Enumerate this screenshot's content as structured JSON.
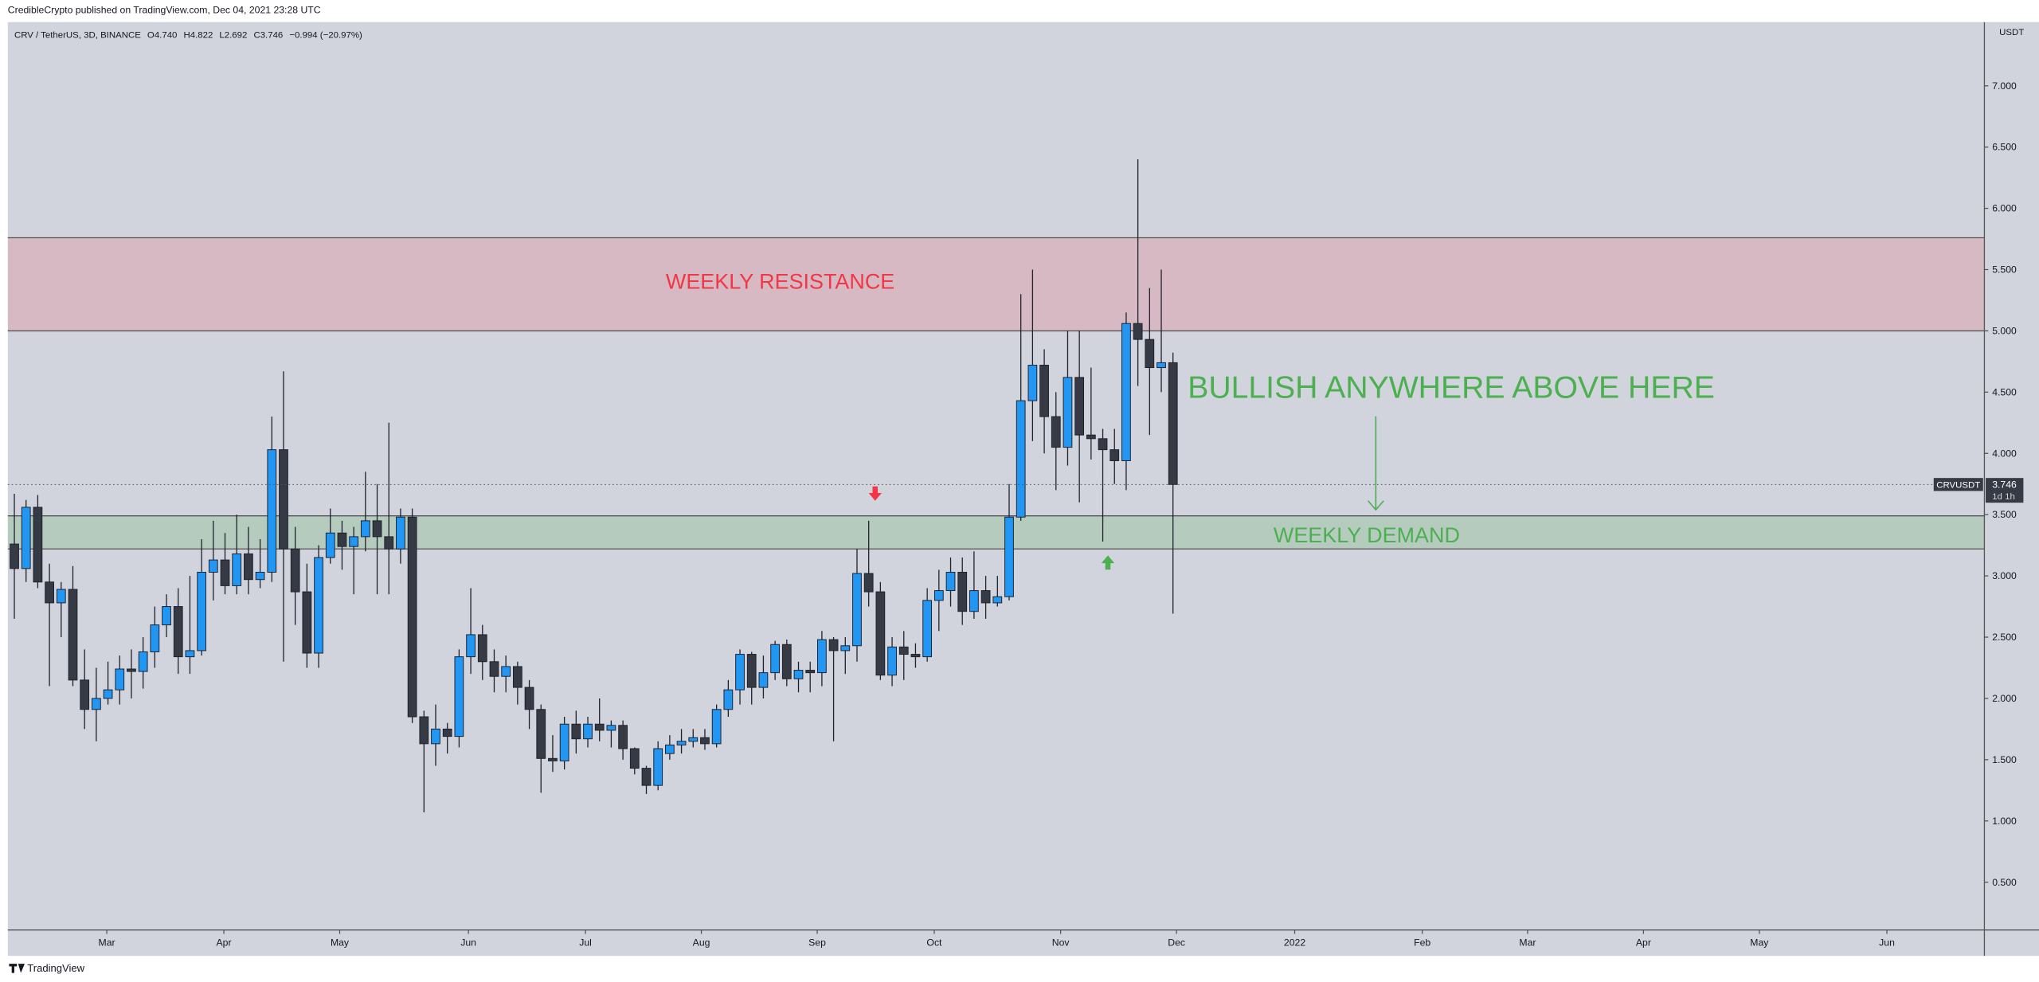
{
  "header": {
    "publisher": "CredibleCrypto published on TradingView.com, Dec 04, 2021 23:28 UTC",
    "footer": "TradingView"
  },
  "legend": {
    "symbol": "CRV / TetherUS, 3D, BINANCE",
    "items": [
      {
        "key": "O",
        "value": "4.740"
      },
      {
        "key": "H",
        "value": "4.822"
      },
      {
        "key": "L",
        "value": "2.692"
      },
      {
        "key": "C",
        "value": "3.746"
      }
    ],
    "change": "−0.994 (−20.97%)"
  },
  "chart_data": {
    "type": "candlestick",
    "y_unit": "USDT",
    "open": [
      3.26,
      3.06,
      3.56,
      2.95,
      2.78,
      2.89,
      2.15,
      1.91,
      2.0,
      2.07,
      2.24,
      2.22,
      2.38,
      2.6,
      2.75,
      2.34,
      2.39,
      3.03,
      3.13,
      2.92,
      3.18,
      2.97,
      3.03,
      4.03,
      3.22,
      2.87,
      2.37,
      3.15,
      3.35,
      3.24,
      3.32,
      3.45,
      3.32,
      3.22,
      3.48,
      1.85,
      1.63,
      1.75,
      1.69,
      2.34,
      2.52,
      2.3,
      2.18,
      2.26,
      2.09,
      1.91,
      1.51,
      1.49,
      1.79,
      1.67,
      1.79,
      1.74,
      1.78,
      1.59,
      1.43,
      1.29,
      1.55,
      1.62,
      1.65,
      1.68,
      1.63,
      1.91,
      2.07,
      2.36,
      2.09,
      2.21,
      2.44,
      2.16,
      2.23,
      2.21,
      2.48,
      2.39,
      2.43,
      3.02,
      2.87,
      2.19,
      2.42,
      2.36,
      2.34,
      2.8,
      2.88,
      3.03,
      2.71,
      2.88,
      2.78,
      2.83,
      3.48,
      4.43,
      4.72,
      4.3,
      4.05,
      4.62,
      4.15,
      4.12,
      4.03,
      3.94,
      5.06,
      4.93,
      4.7,
      4.74
    ],
    "high": [
      3.67,
      3.62,
      3.66,
      3.1,
      2.95,
      3.08,
      2.4,
      2.25,
      2.3,
      2.35,
      2.4,
      2.5,
      2.75,
      2.85,
      2.9,
      3.0,
      3.3,
      3.45,
      3.35,
      3.5,
      3.4,
      3.3,
      4.3,
      4.67,
      3.4,
      3.1,
      3.25,
      3.55,
      3.45,
      3.4,
      3.85,
      3.75,
      4.25,
      3.55,
      3.55,
      1.9,
      1.95,
      1.8,
      2.4,
      2.9,
      2.6,
      2.4,
      2.35,
      2.3,
      2.15,
      1.95,
      1.7,
      1.85,
      1.9,
      1.85,
      2.0,
      1.82,
      1.82,
      1.6,
      1.45,
      1.65,
      1.7,
      1.75,
      1.75,
      1.75,
      1.95,
      2.15,
      2.4,
      2.38,
      2.35,
      2.47,
      2.48,
      2.3,
      2.3,
      2.55,
      2.5,
      2.5,
      3.22,
      3.45,
      2.95,
      2.5,
      2.55,
      2.45,
      2.9,
      3.05,
      3.15,
      3.15,
      3.2,
      3.0,
      3.0,
      3.75,
      5.3,
      5.5,
      4.85,
      4.5,
      5.0,
      5.0,
      4.7,
      4.2,
      4.2,
      5.15,
      6.4,
      5.35,
      5.5,
      4.822
    ],
    "low": [
      2.65,
      2.95,
      2.9,
      2.1,
      2.5,
      2.1,
      1.75,
      1.65,
      1.95,
      1.95,
      2.0,
      2.08,
      2.25,
      2.5,
      2.2,
      2.2,
      2.35,
      2.8,
      2.85,
      2.85,
      2.85,
      2.9,
      2.95,
      2.3,
      2.6,
      2.25,
      2.25,
      3.1,
      3.05,
      2.85,
      3.2,
      2.85,
      2.85,
      3.1,
      1.8,
      1.07,
      1.45,
      1.55,
      1.6,
      2.2,
      2.15,
      2.05,
      2.05,
      1.95,
      1.75,
      1.23,
      1.4,
      1.42,
      1.55,
      1.6,
      1.65,
      1.6,
      1.5,
      1.38,
      1.22,
      1.25,
      1.5,
      1.55,
      1.6,
      1.58,
      1.6,
      1.85,
      1.95,
      1.95,
      2.0,
      2.15,
      2.1,
      2.05,
      2.05,
      2.1,
      1.65,
      2.2,
      2.3,
      2.75,
      2.15,
      2.1,
      2.15,
      2.25,
      2.3,
      2.55,
      2.75,
      2.6,
      2.65,
      2.65,
      2.75,
      2.8,
      3.45,
      4.1,
      4.0,
      3.7,
      3.9,
      3.6,
      3.95,
      3.28,
      3.75,
      3.7,
      4.55,
      4.15,
      4.5,
      2.692
    ],
    "close": [
      3.06,
      3.56,
      2.95,
      2.78,
      2.89,
      2.15,
      1.91,
      2.0,
      2.07,
      2.24,
      2.22,
      2.38,
      2.6,
      2.75,
      2.34,
      2.39,
      3.03,
      3.13,
      2.92,
      3.18,
      2.97,
      3.03,
      4.03,
      3.22,
      2.87,
      2.37,
      3.15,
      3.35,
      3.24,
      3.32,
      3.45,
      3.32,
      3.22,
      3.48,
      1.85,
      1.63,
      1.75,
      1.69,
      2.34,
      2.52,
      2.3,
      2.18,
      2.26,
      2.09,
      1.91,
      1.51,
      1.49,
      1.79,
      1.67,
      1.79,
      1.74,
      1.78,
      1.59,
      1.43,
      1.29,
      1.59,
      1.62,
      1.65,
      1.68,
      1.63,
      1.91,
      2.07,
      2.36,
      2.09,
      2.21,
      2.44,
      2.16,
      2.23,
      2.21,
      2.48,
      2.39,
      2.43,
      3.02,
      2.87,
      2.19,
      2.42,
      2.36,
      2.34,
      2.8,
      2.88,
      3.03,
      2.71,
      2.88,
      2.78,
      2.83,
      3.48,
      4.43,
      4.72,
      4.3,
      4.05,
      4.62,
      4.15,
      4.12,
      4.03,
      3.94,
      5.06,
      4.93,
      4.7,
      4.74,
      3.746
    ],
    "colors": {
      "up": "#2196f3",
      "down": "#363a45"
    },
    "xlim": [
      -0.56,
      168.33
    ],
    "xticks": [
      {
        "value": 7.9,
        "label": "Mar"
      },
      {
        "value": 17.9,
        "label": "Apr"
      },
      {
        "value": 27.8,
        "label": "May"
      },
      {
        "value": 38.8,
        "label": "Jun"
      },
      {
        "value": 48.8,
        "label": "Jul"
      },
      {
        "value": 58.7,
        "label": "Aug"
      },
      {
        "value": 68.6,
        "label": "Sep"
      },
      {
        "value": 78.6,
        "label": "Oct"
      },
      {
        "value": 89.4,
        "label": "Nov"
      },
      {
        "value": 99.3,
        "label": "Dec"
      },
      {
        "value": 109.4,
        "label": "2022"
      },
      {
        "value": 120.3,
        "label": "Feb"
      },
      {
        "value": 129.3,
        "label": "Mar"
      },
      {
        "value": 139.2,
        "label": "Apr"
      },
      {
        "value": 149.1,
        "label": "May"
      },
      {
        "value": 160,
        "label": "Jun"
      }
    ],
    "ylim": [
      0.11,
      7.52
    ],
    "yticks": [
      {
        "value": 0.5,
        "label": "0.500"
      },
      {
        "value": 1,
        "label": "1.000"
      },
      {
        "value": 1.5,
        "label": "1.500"
      },
      {
        "value": 2,
        "label": "2.000"
      },
      {
        "value": 2.5,
        "label": "2.500"
      },
      {
        "value": 3,
        "label": "3.000"
      },
      {
        "value": 3.5,
        "label": "3.500"
      },
      {
        "value": 4,
        "label": "4.000"
      },
      {
        "value": 4.5,
        "label": "4.500"
      },
      {
        "value": 5,
        "label": "5.000"
      },
      {
        "value": 5.5,
        "label": "5.500"
      },
      {
        "value": 6,
        "label": "6.000"
      },
      {
        "value": 6.5,
        "label": "6.500"
      },
      {
        "value": 7,
        "label": "7.000"
      }
    ],
    "grid": false,
    "zones": [
      {
        "name": "WEEKLY RESISTANCE",
        "range": [
          5.0,
          5.76
        ],
        "color": "rgba(242,54,69,0.17)",
        "text_color": "#f23645"
      },
      {
        "name": "WEEKLY DEMAND",
        "range": [
          3.22,
          3.49
        ],
        "color": "rgba(76,175,80,0.22)",
        "text_color": "#4caf50"
      }
    ],
    "annotation": {
      "text": "BULLISH ANYWHERE ABOVE HERE",
      "color": "#4caf50"
    },
    "price_line": {
      "value": 3.746,
      "label": "3.746",
      "symbol": "CRVUSDT",
      "countdown": "1d 1h"
    }
  }
}
